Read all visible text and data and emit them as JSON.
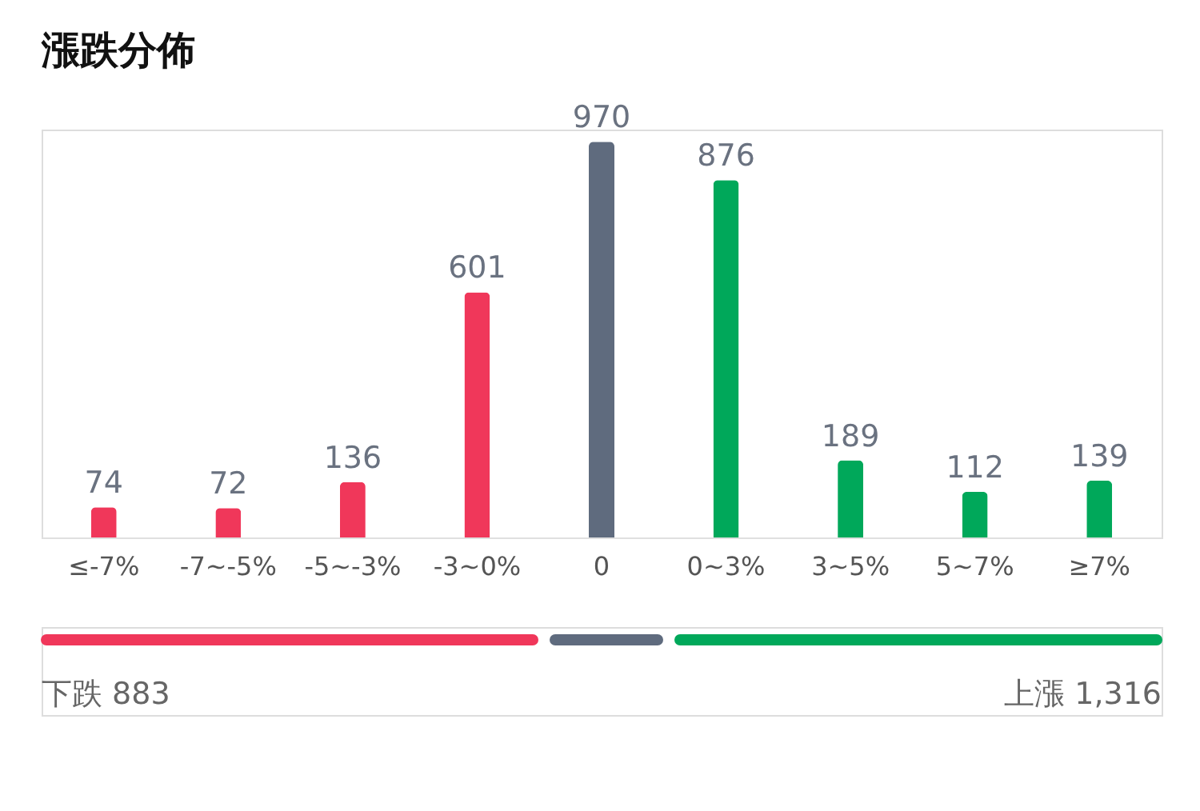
{
  "chart_data": {
    "type": "bar",
    "title": "漲跌分佈",
    "categories": [
      "≤-7%",
      "-7~-5%",
      "-5~-3%",
      "-3~0%",
      "0",
      "0~3%",
      "3~5%",
      "5~7%",
      "≥7%"
    ],
    "values": [
      74,
      72,
      136,
      601,
      970,
      876,
      189,
      112,
      139
    ],
    "colors": [
      "#f0375a",
      "#f0375a",
      "#f0375a",
      "#f0375a",
      "#5f6b7e",
      "#00a85a",
      "#00a85a",
      "#00a85a",
      "#00a85a"
    ],
    "data_labels": true,
    "grid": false,
    "annotations": [
      "下跌 883",
      "上漲 1,316"
    ]
  }
}
